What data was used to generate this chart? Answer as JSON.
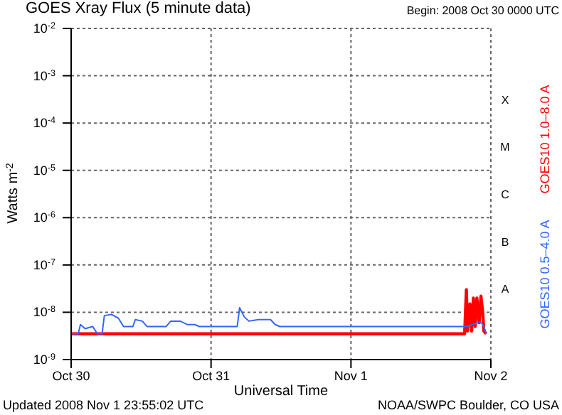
{
  "chart_data": {
    "type": "line",
    "title": "GOES Xray Flux (5 minute data)",
    "subtitle": "Begin:  2008 Oct 30 0000 UTC",
    "xlabel": "Universal Time",
    "ylabel": "Watts m$^{-2}$",
    "annotations": [
      "Updated 2008 Nov  1 23:55:02 UTC",
      "NOAA/SWPC Boulder, CO USA",
      "A",
      "B",
      "C",
      "M",
      "X"
    ],
    "log": "y",
    "grid": true,
    "legend": "right",
    "marker": "none",
    "line_style": "solid",
    "xlim": [
      "2008-10-30",
      "2008-11-02"
    ],
    "xticks": [
      {
        "value": "2008-10-30",
        "label": "Oct 30"
      },
      {
        "value": "2008-10-31",
        "label": "Oct 31"
      },
      {
        "value": "2008-11-01",
        "label": "Nov 1"
      },
      {
        "value": "2008-11-02",
        "label": "Nov 2"
      }
    ],
    "ylim": [
      1e-09,
      0.01
    ],
    "yticks": [
      {
        "value": 1e-09,
        "label": "10$^{-9}$"
      },
      {
        "value": 1e-08,
        "label": "10$^{-8}$"
      },
      {
        "value": 1e-07,
        "label": "10$^{-7}$"
      },
      {
        "value": 1e-06,
        "label": "10$^{-6}$"
      },
      {
        "value": 1e-05,
        "label": "10$^{-5}$"
      },
      {
        "value": 0.0001,
        "label": "10$^{-4}$"
      },
      {
        "value": 0.001,
        "label": "10$^{-3}$"
      },
      {
        "value": 0.01,
        "label": "10$^{-2}$"
      }
    ],
    "series": [
      {
        "name": "GOES10 1.0–8.0 A",
        "color": "#ff0000",
        "x": [
          "2008-10-30T00:00",
          "2008-11-01T19:30",
          "2008-11-01T19:48",
          "2008-11-01T20:00",
          "2008-11-01T20:24",
          "2008-11-01T20:42",
          "2008-11-01T21:00",
          "2008-11-01T21:18",
          "2008-11-01T21:36",
          "2008-11-01T22:00",
          "2008-11-01T22:18",
          "2008-11-01T22:36",
          "2008-11-01T22:48",
          "2008-11-01T23:12"
        ],
        "values": [
          3.5e-09,
          3.5e-09,
          3e-08,
          4e-09,
          1.5e-08,
          4e-09,
          2e-08,
          5e-09,
          2e-08,
          6e-09,
          2.2e-08,
          1e-08,
          4e-09,
          3.5e-09
        ]
      },
      {
        "name": "GOES10 0.5–4.0 A",
        "color": "#3366ff",
        "x": [
          "2008-10-30T00:00",
          "2008-10-30T01:12",
          "2008-10-30T01:36",
          "2008-10-30T02:24",
          "2008-10-30T03:42",
          "2008-10-30T04:30",
          "2008-10-30T05:18",
          "2008-10-30T05:42",
          "2008-10-30T06:54",
          "2008-10-30T08:06",
          "2008-10-30T09:00",
          "2008-10-30T10:36",
          "2008-10-30T11:00",
          "2008-10-30T12:12",
          "2008-10-30T13:00",
          "2008-10-30T16:18",
          "2008-10-30T17:06",
          "2008-10-30T18:42",
          "2008-10-30T19:54",
          "2008-10-30T21:12",
          "2008-10-30T22:00",
          "2008-10-31T04:30",
          "2008-10-31T04:54",
          "2008-10-31T05:42",
          "2008-10-31T06:30",
          "2008-10-31T08:06",
          "2008-10-31T10:12",
          "2008-10-31T11:00",
          "2008-10-31T11:48",
          "2008-11-01T19:54",
          "2008-11-01T20:48",
          "2008-11-01T21:36",
          "2008-11-01T22:24",
          "2008-11-01T22:48",
          "2008-11-01T23:12"
        ],
        "values": [
          3.5e-09,
          3.5e-09,
          5.5e-09,
          4.5e-09,
          5e-09,
          3.5e-09,
          3.5e-09,
          8.5e-09,
          9e-09,
          7.5e-09,
          5e-09,
          5e-09,
          7e-09,
          6.5e-09,
          5e-09,
          5e-09,
          6.5e-09,
          6.5e-09,
          5.5e-09,
          5.5e-09,
          5e-09,
          5e-09,
          1.25e-08,
          8e-09,
          6.5e-09,
          7e-09,
          7e-09,
          5.5e-09,
          5e-09,
          5e-09,
          5.5e-09,
          6e-09,
          6e-09,
          5e-09,
          3.5e-09
        ]
      }
    ]
  }
}
